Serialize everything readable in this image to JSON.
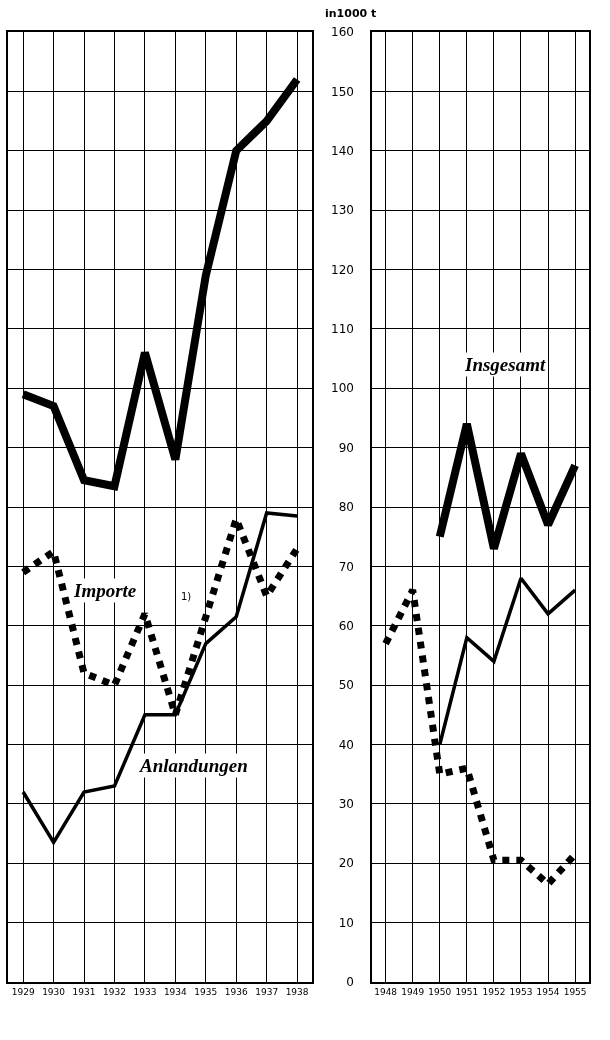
{
  "chart_data": [
    {
      "type": "line",
      "categories": [
        "1929",
        "1930",
        "1931",
        "1932",
        "1933",
        "1934",
        "1935",
        "1936",
        "1937",
        "1938"
      ],
      "ylim": [
        0,
        160
      ],
      "yticks": [
        0,
        10,
        20,
        30,
        40,
        50,
        60,
        70,
        80,
        90,
        100,
        110,
        120,
        130,
        140,
        150,
        160
      ],
      "grid": true,
      "tick_labels": "x",
      "annotations": [
        "1)"
      ],
      "series": [
        {
          "color": "#000000",
          "line_style": "solid",
          "values": [
            99,
            97,
            84.5,
            83.5,
            106,
            88,
            119,
            140,
            145,
            152
          ]
        },
        {
          "name": "Importe",
          "color": "#000000",
          "line_style": "dotted",
          "values": [
            69,
            72.5,
            52,
            50,
            62,
            45,
            61.5,
            78,
            65,
            73
          ]
        },
        {
          "name": "Anlandungen",
          "color": "#000000",
          "line_style": "solid",
          "values": [
            32,
            23.5,
            32,
            33,
            45,
            45,
            57,
            61.5,
            79,
            78.5
          ]
        }
      ]
    },
    {
      "type": "line",
      "ylabel": "in1000 t",
      "categories": [
        "1948",
        "1949",
        "1950",
        "1951",
        "1952",
        "1953",
        "1954",
        "1955"
      ],
      "ylim": [
        0,
        160
      ],
      "yticks": [
        0,
        10,
        20,
        30,
        40,
        50,
        60,
        70,
        80,
        90,
        100,
        110,
        120,
        130,
        140,
        150,
        160
      ],
      "grid": true,
      "series": [
        {
          "name": "Insgesamt",
          "color": "#000000",
          "line_style": "solid",
          "values": [
            null,
            null,
            75,
            94,
            73,
            89,
            77,
            87
          ]
        },
        {
          "color": "#000000",
          "line_style": "dotted",
          "values": [
            57,
            66,
            35,
            36,
            20.5,
            20.5,
            16.5,
            21.5
          ]
        },
        {
          "color": "#000000",
          "line_style": "solid",
          "values": [
            null,
            null,
            40,
            58,
            54,
            68,
            62,
            66
          ]
        }
      ]
    }
  ]
}
